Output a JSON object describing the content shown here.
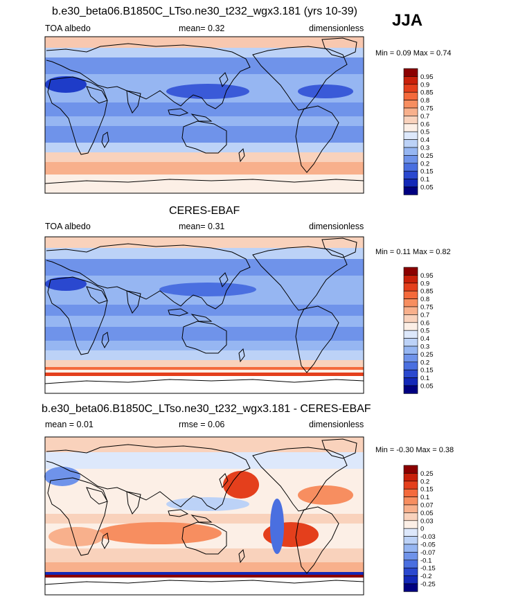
{
  "season": "JJA",
  "panels": [
    {
      "title": "b.e30_beta06.B1850C_LTso.ne30_t232_wgx3.181 (yrs 10-39)",
      "left_label": "TOA albedo",
      "center_label": "mean=  0.32",
      "right_label": "dimensionless",
      "minmax": "Min =   0.09 Max =   0.74"
    },
    {
      "title": "CERES-EBAF",
      "left_label": "TOA albedo",
      "center_label": "mean=  0.31",
      "right_label": "dimensionless",
      "minmax": "Min =   0.11 Max =   0.82"
    },
    {
      "title": "b.e30_beta06.B1850C_LTso.ne30_t232_wgx3.181 - CERES-EBAF",
      "left_label": "mean =   0.01",
      "center_label": "rmse =   0.06",
      "right_label": "dimensionless",
      "minmax": "Min =  -0.30 Max =   0.38"
    }
  ],
  "colorbar_abs": {
    "labels": [
      "0.95",
      "0.9",
      "0.85",
      "0.8",
      "0.75",
      "0.7",
      "0.6",
      "0.5",
      "0.4",
      "0.3",
      "0.25",
      "0.2",
      "0.15",
      "0.1",
      "0.05"
    ],
    "colors": [
      "#8b0000",
      "#c8200a",
      "#e43f1c",
      "#f46a3c",
      "#f78e60",
      "#f8b08c",
      "#f9d2bc",
      "#fcefe6",
      "#dde8fb",
      "#bcd2f7",
      "#96b6f2",
      "#6f93ea",
      "#4a6fe0",
      "#2a48cf",
      "#1328b8",
      "#000080"
    ]
  },
  "colorbar_diff": {
    "labels": [
      "0.25",
      "0.2",
      "0.15",
      "0.1",
      "0.07",
      "0.05",
      "0.03",
      "0",
      "-0.03",
      "-0.05",
      "-0.07",
      "-0.1",
      "-0.15",
      "-0.2",
      "-0.25"
    ],
    "colors": [
      "#8b0000",
      "#c8200a",
      "#e43f1c",
      "#f46a3c",
      "#f78e60",
      "#f8b08c",
      "#f9d2bc",
      "#fcefe6",
      "#dde8fb",
      "#bcd2f7",
      "#96b6f2",
      "#6f93ea",
      "#4a6fe0",
      "#2a48cf",
      "#1328b8",
      "#000080"
    ]
  }
}
